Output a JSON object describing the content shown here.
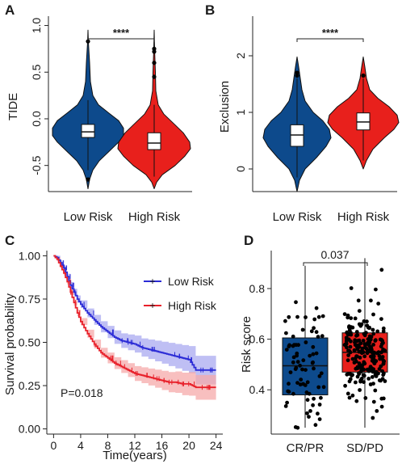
{
  "colors": {
    "low": "#0d4a8c",
    "high": "#e8201c",
    "low_km": "#2b2bd6",
    "high_km": "#e8202a",
    "low_band": "#a9a9f0",
    "high_band": "#f5a9a9",
    "dot": "#000000"
  },
  "chart_data": [
    {
      "panel": "A",
      "type": "violin",
      "categories": [
        "Low Risk",
        "High Risk"
      ],
      "ylabel": "TIDE",
      "ylim": [
        -0.78,
        1.1
      ],
      "yticks": [
        -0.5,
        0.0,
        0.5,
        1.0
      ],
      "ytick_labels": [
        "-0.5",
        "0.0",
        "0.5",
        "1.0"
      ],
      "significance": "****",
      "series": [
        {
          "box": {
            "q1": -0.2,
            "median": -0.14,
            "q3": -0.06,
            "whisker_low": -0.55,
            "whisker_high": 0.2
          },
          "outliers": [
            0.83,
            -0.65
          ]
        },
        {
          "box": {
            "q1": -0.33,
            "median": -0.26,
            "q3": -0.15,
            "whisker_low": -0.62,
            "whisker_high": 0.15
          },
          "outliers": [
            0.75,
            0.72,
            0.6,
            0.45
          ]
        }
      ]
    },
    {
      "panel": "B",
      "type": "violin",
      "categories": [
        "Low Risk",
        "High Risk"
      ],
      "ylabel": "Exclusion",
      "ylim": [
        -0.4,
        2.7
      ],
      "yticks": [
        0,
        1,
        2
      ],
      "ytick_labels": [
        "0",
        "1",
        "2"
      ],
      "significance": "****",
      "series": [
        {
          "box": {
            "q1": 0.4,
            "median": 0.6,
            "q3": 0.78,
            "whisker_low": -0.15,
            "whisker_high": 1.6
          },
          "outliers": [
            1.7,
            1.65
          ]
        },
        {
          "box": {
            "q1": 0.69,
            "median": 0.83,
            "q3": 0.99,
            "whisker_low": 0.15,
            "whisker_high": 1.6
          },
          "outliers": [
            1.65
          ]
        }
      ]
    },
    {
      "panel": "C",
      "type": "line",
      "xlabel": "Time(years)",
      "ylabel": "Survival probability",
      "xlim": [
        -1,
        25
      ],
      "ylim": [
        -0.03,
        1.03
      ],
      "xticks": [
        0,
        4,
        8,
        12,
        16,
        20,
        24
      ],
      "yticks": [
        0.0,
        0.25,
        0.5,
        0.75,
        1.0
      ],
      "ytick_labels": [
        "0.00",
        "0.25",
        "0.50",
        "0.75",
        "1.00"
      ],
      "annotation": "P=0.018",
      "series": [
        {
          "name": "Low Risk",
          "points": [
            [
              0,
              1.0
            ],
            [
              0.5,
              0.99
            ],
            [
              1,
              0.96
            ],
            [
              1.5,
              0.93
            ],
            [
              2,
              0.88
            ],
            [
              2.5,
              0.83
            ],
            [
              3,
              0.79
            ],
            [
              3.5,
              0.75
            ],
            [
              4,
              0.72
            ],
            [
              5,
              0.67
            ],
            [
              6,
              0.63
            ],
            [
              7,
              0.59
            ],
            [
              8,
              0.56
            ],
            [
              9,
              0.53
            ],
            [
              10,
              0.51
            ],
            [
              11,
              0.5
            ],
            [
              12,
              0.49
            ],
            [
              13,
              0.47
            ],
            [
              14,
              0.46
            ],
            [
              15,
              0.45
            ],
            [
              16,
              0.44
            ],
            [
              17,
              0.43
            ],
            [
              18,
              0.42
            ],
            [
              19,
              0.41
            ],
            [
              20,
              0.4
            ],
            [
              21,
              0.34
            ],
            [
              24,
              0.34
            ]
          ],
          "ci": [
            0.06,
            0.07
          ]
        },
        {
          "name": "High Risk",
          "points": [
            [
              0,
              1.0
            ],
            [
              0.5,
              0.98
            ],
            [
              1,
              0.94
            ],
            [
              1.5,
              0.9
            ],
            [
              2,
              0.85
            ],
            [
              2.5,
              0.79
            ],
            [
              3,
              0.73
            ],
            [
              3.5,
              0.67
            ],
            [
              4,
              0.62
            ],
            [
              5,
              0.55
            ],
            [
              6,
              0.49
            ],
            [
              7,
              0.44
            ],
            [
              8,
              0.41
            ],
            [
              9,
              0.38
            ],
            [
              10,
              0.36
            ],
            [
              11,
              0.34
            ],
            [
              12,
              0.32
            ],
            [
              13,
              0.31
            ],
            [
              14,
              0.3
            ],
            [
              15,
              0.29
            ],
            [
              16,
              0.28
            ],
            [
              17,
              0.27
            ],
            [
              18,
              0.27
            ],
            [
              19,
              0.26
            ],
            [
              20,
              0.26
            ],
            [
              21,
              0.24
            ],
            [
              24,
              0.24
            ]
          ],
          "ci": [
            0.05,
            0.06
          ]
        }
      ]
    },
    {
      "panel": "D",
      "type": "box",
      "categories": [
        "CR/PR",
        "SD/PD"
      ],
      "ylabel": "Risk score",
      "ylim": [
        0.225,
        0.95
      ],
      "yticks": [
        0.4,
        0.6,
        0.8
      ],
      "ytick_labels": [
        "0.4",
        "0.6",
        "0.8"
      ],
      "significance": "0.037",
      "series": [
        {
          "box": {
            "q1": 0.38,
            "median": 0.495,
            "q3": 0.605,
            "whisker_low": 0.25,
            "whisker_high": 0.89
          },
          "n": 75
        },
        {
          "box": {
            "q1": 0.47,
            "median": 0.548,
            "q3": 0.625,
            "whisker_low": 0.25,
            "whisker_high": 0.92
          },
          "n": 220
        }
      ]
    }
  ]
}
